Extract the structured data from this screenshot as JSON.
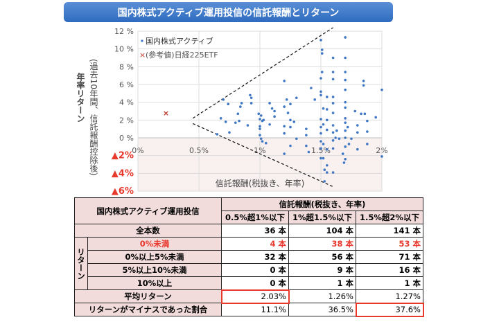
{
  "title": "国内株式アクティブ運用投信の信託報酬とリターン",
  "chart_data": {
    "type": "scatter",
    "xlabel": "信託報酬(税抜き、年率)",
    "ylabel": [
      "年率リターン",
      "(過去10年間、信託報酬控除後)"
    ],
    "xlim": [
      0,
      2
    ],
    "ylim": [
      -6,
      12
    ],
    "x_ticks": [
      {
        "v": 0,
        "l": "0%"
      },
      {
        "v": 0.5,
        "l": "0.5%"
      },
      {
        "v": 1,
        "l": "1%"
      },
      {
        "v": 1.5,
        "l": "1.5%"
      },
      {
        "v": 2,
        "l": "2%"
      }
    ],
    "y_ticks": [
      {
        "v": 12,
        "l": "12 %"
      },
      {
        "v": 10,
        "l": "10 %"
      },
      {
        "v": 8,
        "l": "8 %"
      },
      {
        "v": 6,
        "l": "6 %"
      },
      {
        "v": 4,
        "l": "4 %"
      },
      {
        "v": 2,
        "l": "2 %"
      },
      {
        "v": 0,
        "l": "0 %"
      },
      {
        "v": -2,
        "l": "▲2%"
      },
      {
        "v": -4,
        "l": "▲4%"
      },
      {
        "v": -6,
        "l": "▲6%"
      }
    ],
    "grid": true,
    "negative_region_color": "#f9f0f0",
    "legend_position": "top-left",
    "series": [
      {
        "name": "国内株式アクティブ",
        "marker": "dot",
        "color": "#3f77c4",
        "points": [
          [
            0.65,
            0.4
          ],
          [
            0.68,
            2.2
          ],
          [
            0.7,
            4.3
          ],
          [
            0.72,
            1.8
          ],
          [
            0.74,
            3.8
          ],
          [
            0.75,
            0.6
          ],
          [
            0.8,
            1.7
          ],
          [
            0.82,
            2.7
          ],
          [
            0.83,
            1.9
          ],
          [
            0.84,
            3.5
          ],
          [
            0.85,
            3.9
          ],
          [
            0.9,
            1.4
          ],
          [
            0.92,
            4.8
          ],
          [
            0.93,
            4.5
          ],
          [
            0.93,
            3.9
          ],
          [
            0.99,
            2.7
          ],
          [
            1.0,
            2.1
          ],
          [
            1.0,
            1.3
          ],
          [
            1.0,
            1.0
          ],
          [
            1.0,
            0.3
          ],
          [
            1.01,
            2.5
          ],
          [
            1.01,
            -0.1
          ],
          [
            1.02,
            1.9
          ],
          [
            1.02,
            -0.4
          ],
          [
            1.03,
            2.0
          ],
          [
            1.05,
            -0.6
          ],
          [
            1.08,
            3.9
          ],
          [
            1.08,
            1.5
          ],
          [
            1.1,
            3.3
          ],
          [
            1.12,
            3.0
          ],
          [
            1.12,
            2.4
          ],
          [
            1.2,
            6.4
          ],
          [
            1.2,
            3.5
          ],
          [
            1.2,
            1.3
          ],
          [
            1.2,
            0.5
          ],
          [
            1.2,
            -1.8
          ],
          [
            1.22,
            4.3
          ],
          [
            1.23,
            2.8
          ],
          [
            1.25,
            3.8
          ],
          [
            1.25,
            2.0
          ],
          [
            1.25,
            1.2
          ],
          [
            1.25,
            -0.9
          ],
          [
            1.28,
            1.8
          ],
          [
            1.3,
            4.5
          ],
          [
            1.3,
            -0.1
          ],
          [
            1.38,
            1.0
          ],
          [
            1.38,
            0.3
          ],
          [
            1.38,
            -0.9
          ],
          [
            1.4,
            -1.6
          ],
          [
            1.42,
            5.6
          ],
          [
            1.45,
            4.3
          ],
          [
            1.5,
            11.0
          ],
          [
            1.5,
            6.7
          ],
          [
            1.5,
            5.2
          ],
          [
            1.5,
            4.8
          ],
          [
            1.5,
            2.1
          ],
          [
            1.5,
            1.2
          ],
          [
            1.5,
            0.5
          ],
          [
            1.5,
            -0.4
          ],
          [
            1.5,
            -1.2
          ],
          [
            1.5,
            -2.3
          ],
          [
            1.51,
            9.9
          ],
          [
            1.51,
            9.5
          ],
          [
            1.51,
            7.4
          ],
          [
            1.52,
            3.3
          ],
          [
            1.52,
            1.5
          ],
          [
            1.52,
            -0.7
          ],
          [
            1.52,
            -2.3
          ],
          [
            1.53,
            -3.6
          ],
          [
            1.53,
            -4.9
          ],
          [
            1.55,
            4.6
          ],
          [
            1.55,
            3.2
          ],
          [
            1.55,
            2.0
          ],
          [
            1.55,
            0.9
          ],
          [
            1.55,
            -1.3
          ],
          [
            1.55,
            -3.1
          ],
          [
            1.55,
            -3.9
          ],
          [
            1.6,
            9.0
          ],
          [
            1.6,
            7.4
          ],
          [
            1.6,
            6.6
          ],
          [
            1.6,
            4.6
          ],
          [
            1.6,
            3.9
          ],
          [
            1.6,
            2.8
          ],
          [
            1.6,
            1.4
          ],
          [
            1.6,
            0.6
          ],
          [
            1.6,
            -0.3
          ],
          [
            1.6,
            -1.2
          ],
          [
            1.6,
            -3.9
          ],
          [
            1.63,
            0.8
          ],
          [
            1.62,
            0.0
          ],
          [
            1.65,
            -0.1
          ],
          [
            1.68,
            -1.8
          ],
          [
            1.69,
            -2.8
          ],
          [
            1.7,
            11.3
          ],
          [
            1.7,
            9.0
          ],
          [
            1.7,
            7.4
          ],
          [
            1.7,
            6.5
          ],
          [
            1.7,
            5.4
          ],
          [
            1.7,
            4.0
          ],
          [
            1.7,
            3.4
          ],
          [
            1.7,
            2.2
          ],
          [
            1.7,
            1.7
          ],
          [
            1.7,
            0.8
          ],
          [
            1.7,
            0.0
          ],
          [
            1.7,
            -1.0
          ],
          [
            1.7,
            -2.4
          ],
          [
            1.72,
            1.2
          ],
          [
            1.73,
            -0.7
          ],
          [
            1.75,
            -0.1
          ],
          [
            1.78,
            3.0
          ],
          [
            1.8,
            1.4
          ],
          [
            1.8,
            0.6
          ],
          [
            1.8,
            -1.3
          ],
          [
            1.83,
            2.7
          ],
          [
            1.85,
            6.4
          ],
          [
            1.85,
            5.9
          ],
          [
            1.86,
            2.7
          ],
          [
            1.88,
            1.9
          ],
          [
            1.88,
            0.7
          ],
          [
            1.88,
            -0.7
          ],
          [
            1.95,
            2.3
          ],
          [
            2.0,
            5.4
          ],
          [
            2.0,
            -2.1
          ]
        ]
      },
      {
        "name": "(参考値)日経225ETF",
        "marker": "x",
        "color": "#c0392b",
        "points": [
          [
            0.23,
            2.8
          ]
        ]
      }
    ],
    "guide_lines": [
      [
        [
          0.45,
          2.2
        ],
        [
          1.6,
          12.4
        ]
      ],
      [
        [
          0.45,
          1.6
        ],
        [
          1.6,
          -5.5
        ]
      ]
    ]
  },
  "table": {
    "corner": "国内株式アクティブ運用投信",
    "group_header": "信託報酬(税抜き、年率)",
    "columns": [
      "0.5%超1%以下",
      "1%超1.5%以下",
      "1.5%超2%以下"
    ],
    "total_label": "全本数",
    "total": [
      "36 本",
      "104 本",
      "141 本"
    ],
    "return_group": "リターン",
    "return_rows": [
      {
        "label": "0%未満",
        "values": [
          "4 本",
          "38 本",
          "53 本"
        ],
        "red": true
      },
      {
        "label": "0%以上5%未満",
        "values": [
          "32 本",
          "56 本",
          "71 本"
        ]
      },
      {
        "label": "5%以上10%未満",
        "values": [
          "0 本",
          "9 本",
          "16 本"
        ]
      },
      {
        "label": "10%以上",
        "values": [
          "0 本",
          "1 本",
          "1 本"
        ]
      }
    ],
    "avg_label": "平均リターン",
    "avg": [
      "2.03%",
      "1.26%",
      "1.27%"
    ],
    "neg_label": "リターンがマイナスであった割合",
    "neg": [
      "11.1%",
      "36.5%",
      "37.6%"
    ],
    "highlight_color": "#e8392d"
  }
}
